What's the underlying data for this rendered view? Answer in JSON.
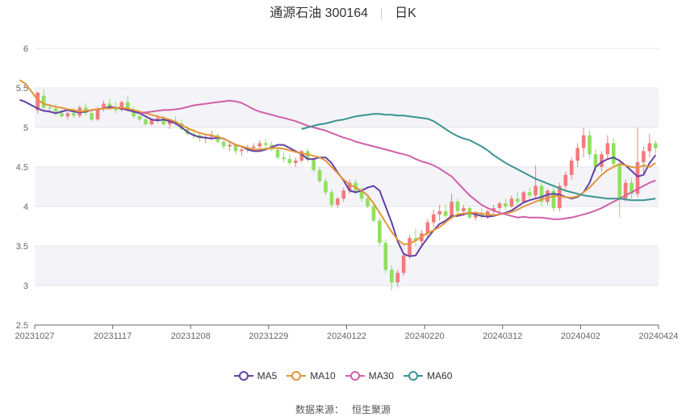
{
  "title": {
    "stock": "通源石油 300164",
    "period": "日K"
  },
  "source": {
    "label": "数据来源：",
    "value": "恒生聚源"
  },
  "colors": {
    "up": "#f07b7b",
    "down": "#8fe05f",
    "ma5": "#6240a6",
    "ma10": "#e2953a",
    "ma30": "#d160a8",
    "ma60": "#3a9592"
  },
  "legend": [
    {
      "name": "MA5",
      "color": "#6240a6"
    },
    {
      "name": "MA10",
      "color": "#e2953a"
    },
    {
      "name": "MA30",
      "color": "#d160a8"
    },
    {
      "name": "MA60",
      "color": "#3a9592"
    }
  ],
  "chart_data": {
    "type": "candlestick",
    "title": "通源石油 300164",
    "period": "日K",
    "ylim": [
      2.5,
      6
    ],
    "y_ticks": [
      "2.5",
      "3",
      "3.5",
      "4",
      "4.5",
      "5",
      "5.5",
      "6"
    ],
    "x_ticks": [
      "20231027",
      "20231117",
      "20231208",
      "20231229",
      "20240122",
      "20240220",
      "20240312",
      "20240402",
      "20240424"
    ],
    "grid": true,
    "legend_position": "bottom",
    "x_date_range": [
      "20231027",
      "20240424"
    ],
    "series": [
      {
        "name": "MA5",
        "values": [
          5.35,
          5.32,
          5.28,
          5.24,
          5.21,
          5.2,
          5.18,
          5.2,
          5.22,
          5.2,
          5.19,
          5.2,
          5.22,
          5.23,
          5.24,
          5.26,
          5.25,
          5.24,
          5.22,
          5.2,
          5.18,
          5.14,
          5.1,
          5.09,
          5.1,
          5.08,
          5.05,
          5.0,
          4.94,
          4.9,
          4.88,
          4.87,
          4.86,
          4.87,
          4.86,
          4.82,
          4.78,
          4.76,
          4.72,
          4.7,
          4.7,
          4.72,
          4.75,
          4.78,
          4.78,
          4.74,
          4.7,
          4.66,
          4.6,
          4.6,
          4.62,
          4.62,
          4.55,
          4.43,
          4.33,
          4.2,
          4.18,
          4.2,
          4.24,
          4.26,
          4.2,
          4.0,
          3.8,
          3.56,
          3.4,
          3.37,
          3.38,
          3.5,
          3.6,
          3.7,
          3.78,
          3.82,
          3.88,
          3.88,
          3.9,
          3.92,
          3.9,
          3.88,
          3.87,
          3.88,
          3.9,
          3.92,
          3.95,
          4.0,
          4.05,
          4.08,
          4.1,
          4.12,
          4.15,
          4.16,
          4.15,
          4.12,
          4.1,
          4.12,
          4.18,
          4.3,
          4.5,
          4.56,
          4.6,
          4.62,
          4.58,
          4.52,
          4.45,
          4.38,
          4.4,
          4.55,
          4.65
        ]
      },
      {
        "name": "MA10",
        "values": [
          5.6,
          5.55,
          5.45,
          5.35,
          5.3,
          5.28,
          5.26,
          5.25,
          5.23,
          5.22,
          5.2,
          5.21,
          5.22,
          5.23,
          5.24,
          5.24,
          5.25,
          5.25,
          5.24,
          5.22,
          5.2,
          5.18,
          5.16,
          5.14,
          5.12,
          5.1,
          5.07,
          5.03,
          4.99,
          4.96,
          4.93,
          4.91,
          4.9,
          4.88,
          4.86,
          4.82,
          4.78,
          4.76,
          4.74,
          4.72,
          4.72,
          4.73,
          4.74,
          4.74,
          4.73,
          4.71,
          4.69,
          4.67,
          4.66,
          4.64,
          4.62,
          4.58,
          4.5,
          4.42,
          4.34,
          4.28,
          4.24,
          4.2,
          4.14,
          4.04,
          3.92,
          3.8,
          3.68,
          3.58,
          3.52,
          3.53,
          3.57,
          3.62,
          3.66,
          3.7,
          3.74,
          3.8,
          3.86,
          3.9,
          3.91,
          3.92,
          3.92,
          3.91,
          3.9,
          3.89,
          3.9,
          3.91,
          3.93,
          3.96,
          4.0,
          4.03,
          4.06,
          4.09,
          4.11,
          4.13,
          4.13,
          4.12,
          4.11,
          4.13,
          4.18,
          4.24,
          4.32,
          4.4,
          4.46,
          4.5,
          4.54,
          4.52,
          4.5,
          4.49,
          4.52,
          4.5,
          4.55
        ]
      },
      {
        "name": "MA30",
        "values": [
          5.18,
          5.19,
          5.2,
          5.21,
          5.22,
          5.22,
          5.23,
          5.24,
          5.26,
          5.28,
          5.29,
          5.3,
          5.31,
          5.32,
          5.33,
          5.34,
          5.33,
          5.31,
          5.27,
          5.23,
          5.2,
          5.18,
          5.16,
          5.14,
          5.12,
          5.1,
          5.08,
          5.05,
          5.02,
          5.0,
          4.98,
          4.96,
          4.93,
          4.9,
          4.87,
          4.85,
          4.82,
          4.8,
          4.78,
          4.76,
          4.74,
          4.72,
          4.7,
          4.68,
          4.66,
          4.64,
          4.6,
          4.57,
          4.55,
          4.52,
          4.48,
          4.43,
          4.38,
          4.3,
          4.22,
          4.14,
          4.08,
          4.02,
          3.98,
          3.95,
          3.92,
          3.9,
          3.88,
          3.86,
          3.87,
          3.86,
          3.86,
          3.86,
          3.85,
          3.84,
          3.84,
          3.85,
          3.86,
          3.88,
          3.9,
          3.92,
          3.95,
          3.98,
          4.02,
          4.06,
          4.1,
          4.14,
          4.18,
          4.22,
          4.26,
          4.3,
          4.33
        ]
      },
      {
        "name": "MA60",
        "values": [
          4.98,
          5.0,
          5.02,
          5.04,
          5.05,
          5.07,
          5.09,
          5.1,
          5.12,
          5.14,
          5.15,
          5.16,
          5.17,
          5.17,
          5.16,
          5.16,
          5.15,
          5.15,
          5.14,
          5.13,
          5.12,
          5.11,
          5.08,
          5.03,
          4.98,
          4.93,
          4.89,
          4.86,
          4.84,
          4.8,
          4.76,
          4.71,
          4.65,
          4.6,
          4.55,
          4.51,
          4.47,
          4.43,
          4.39,
          4.35,
          4.32,
          4.29,
          4.26,
          4.23,
          4.2,
          4.18,
          4.16,
          4.14,
          4.13,
          4.12,
          4.11,
          4.1,
          4.1,
          4.1,
          4.09,
          4.08,
          4.08,
          4.08,
          4.09,
          4.1
        ]
      },
      {
        "name": "candles",
        "ohlc": [
          [
            5.22,
            5.45,
            5.18,
            5.44
          ],
          [
            5.4,
            5.48,
            5.22,
            5.25
          ],
          [
            5.25,
            5.3,
            5.2,
            5.24
          ],
          [
            5.24,
            5.3,
            5.15,
            5.2
          ],
          [
            5.18,
            5.22,
            5.12,
            5.14
          ],
          [
            5.14,
            5.2,
            5.1,
            5.18
          ],
          [
            5.18,
            5.25,
            5.12,
            5.15
          ],
          [
            5.15,
            5.28,
            5.12,
            5.25
          ],
          [
            5.25,
            5.3,
            5.15,
            5.18
          ],
          [
            5.18,
            5.22,
            5.08,
            5.1
          ],
          [
            5.1,
            5.26,
            5.08,
            5.24
          ],
          [
            5.24,
            5.34,
            5.2,
            5.3
          ],
          [
            5.3,
            5.36,
            5.22,
            5.26
          ],
          [
            5.26,
            5.32,
            5.18,
            5.22
          ],
          [
            5.22,
            5.34,
            5.2,
            5.32
          ],
          [
            5.32,
            5.4,
            5.2,
            5.22
          ],
          [
            5.22,
            5.26,
            5.12,
            5.14
          ],
          [
            5.14,
            5.2,
            5.08,
            5.1
          ],
          [
            5.1,
            5.14,
            5.02,
            5.04
          ],
          [
            5.04,
            5.12,
            5.02,
            5.1
          ],
          [
            5.1,
            5.16,
            5.06,
            5.12
          ],
          [
            5.12,
            5.15,
            5.02,
            5.04
          ],
          [
            5.04,
            5.1,
            4.98,
            5.08
          ],
          [
            5.08,
            5.14,
            5.02,
            5.05
          ],
          [
            5.05,
            5.1,
            4.96,
            4.98
          ],
          [
            4.98,
            5.02,
            4.9,
            4.92
          ],
          [
            4.92,
            4.98,
            4.86,
            4.9
          ],
          [
            4.9,
            4.94,
            4.82,
            4.86
          ],
          [
            4.86,
            4.92,
            4.8,
            4.88
          ],
          [
            4.88,
            4.96,
            4.84,
            4.9
          ],
          [
            4.9,
            4.92,
            4.8,
            4.82
          ],
          [
            4.82,
            4.86,
            4.72,
            4.76
          ],
          [
            4.76,
            4.82,
            4.7,
            4.78
          ],
          [
            4.78,
            4.8,
            4.66,
            4.7
          ],
          [
            4.7,
            4.76,
            4.64,
            4.72
          ],
          [
            4.72,
            4.78,
            4.68,
            4.74
          ],
          [
            4.74,
            4.8,
            4.7,
            4.76
          ],
          [
            4.76,
            4.84,
            4.72,
            4.8
          ],
          [
            4.8,
            4.86,
            4.74,
            4.78
          ],
          [
            4.78,
            4.82,
            4.7,
            4.72
          ],
          [
            4.72,
            4.76,
            4.6,
            4.62
          ],
          [
            4.62,
            4.68,
            4.56,
            4.6
          ],
          [
            4.6,
            4.66,
            4.52,
            4.55
          ],
          [
            4.55,
            4.62,
            4.5,
            4.58
          ],
          [
            4.58,
            4.72,
            4.56,
            4.7
          ],
          [
            4.7,
            4.74,
            4.56,
            4.6
          ],
          [
            4.6,
            4.62,
            4.44,
            4.46
          ],
          [
            4.46,
            4.5,
            4.3,
            4.32
          ],
          [
            4.32,
            4.36,
            4.15,
            4.18
          ],
          [
            4.18,
            4.22,
            3.98,
            4.02
          ],
          [
            4.02,
            4.12,
            3.98,
            4.1
          ],
          [
            4.1,
            4.24,
            4.06,
            4.2
          ],
          [
            4.2,
            4.34,
            4.16,
            4.3
          ],
          [
            4.3,
            4.34,
            4.16,
            4.2
          ],
          [
            4.2,
            4.24,
            4.06,
            4.1
          ],
          [
            4.1,
            4.14,
            3.98,
            4.0
          ],
          [
            4.0,
            4.04,
            3.8,
            3.82
          ],
          [
            3.82,
            3.86,
            3.5,
            3.54
          ],
          [
            3.54,
            3.58,
            3.16,
            3.2
          ],
          [
            3.2,
            3.26,
            2.94,
            3.04
          ],
          [
            3.04,
            3.2,
            2.98,
            3.16
          ],
          [
            3.16,
            3.4,
            3.12,
            3.38
          ],
          [
            3.38,
            3.64,
            3.34,
            3.6
          ],
          [
            3.6,
            3.72,
            3.5,
            3.56
          ],
          [
            3.56,
            3.7,
            3.48,
            3.66
          ],
          [
            3.66,
            3.84,
            3.6,
            3.8
          ],
          [
            3.8,
            3.96,
            3.74,
            3.9
          ],
          [
            3.9,
            4.02,
            3.82,
            3.94
          ],
          [
            3.94,
            4.02,
            3.86,
            3.88
          ],
          [
            3.88,
            4.16,
            3.84,
            4.06
          ],
          [
            4.06,
            4.1,
            3.9,
            3.94
          ],
          [
            3.94,
            4.02,
            3.88,
            3.98
          ],
          [
            3.98,
            4.0,
            3.84,
            3.86
          ],
          [
            3.86,
            3.94,
            3.82,
            3.92
          ],
          [
            3.92,
            3.98,
            3.84,
            3.88
          ],
          [
            3.88,
            3.96,
            3.84,
            3.94
          ],
          [
            3.94,
            4.02,
            3.88,
            3.98
          ],
          [
            3.98,
            4.06,
            3.92,
            4.04
          ],
          [
            4.04,
            4.1,
            3.96,
            4.0
          ],
          [
            4.0,
            4.14,
            3.98,
            4.1
          ],
          [
            4.1,
            4.18,
            4.02,
            4.06
          ],
          [
            4.06,
            4.2,
            4.04,
            4.18
          ],
          [
            4.18,
            4.24,
            4.1,
            4.14
          ],
          [
            4.14,
            4.52,
            4.1,
            4.26
          ],
          [
            4.26,
            4.3,
            4.0,
            4.06
          ],
          [
            4.06,
            4.22,
            4.02,
            4.2
          ],
          [
            4.2,
            4.28,
            3.94,
            3.98
          ],
          [
            3.98,
            4.3,
            3.94,
            4.26
          ],
          [
            4.26,
            4.44,
            4.22,
            4.4
          ],
          [
            4.4,
            4.62,
            4.34,
            4.58
          ],
          [
            4.58,
            4.8,
            4.5,
            4.74
          ],
          [
            4.74,
            5.0,
            4.62,
            4.9
          ],
          [
            4.9,
            4.96,
            4.6,
            4.66
          ],
          [
            4.66,
            4.72,
            4.44,
            4.5
          ],
          [
            4.5,
            4.7,
            4.44,
            4.66
          ],
          [
            4.66,
            4.9,
            4.6,
            4.8
          ],
          [
            4.8,
            4.86,
            4.5,
            4.54
          ],
          [
            4.54,
            4.6,
            3.86,
            4.1
          ],
          [
            4.1,
            4.34,
            4.06,
            4.3
          ],
          [
            4.3,
            4.36,
            4.1,
            4.16
          ],
          [
            4.16,
            5.0,
            4.12,
            4.56
          ],
          [
            4.56,
            4.76,
            4.4,
            4.7
          ],
          [
            4.7,
            4.92,
            4.62,
            4.8
          ],
          [
            4.8,
            4.84,
            4.66,
            4.74
          ]
        ]
      }
    ]
  }
}
